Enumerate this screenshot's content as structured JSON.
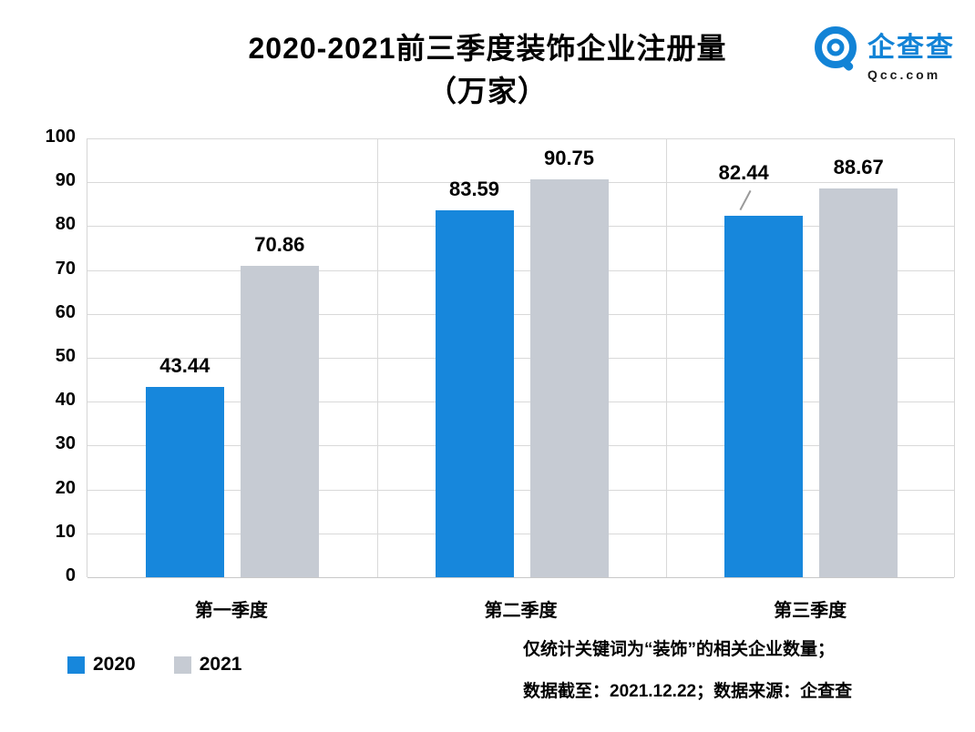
{
  "header": {
    "title_line1": "2020-2021前三季度装饰企业注册量",
    "title_line2": "（万家）",
    "logo": {
      "name": "企查查",
      "domain": "Qcc.com",
      "color": "#1283d6"
    }
  },
  "chart_data": {
    "type": "bar",
    "title": "2020-2021前三季度装饰企业注册量（万家）",
    "categories": [
      "第一季度",
      "第二季度",
      "第三季度"
    ],
    "series": [
      {
        "name": "2020",
        "color": "#1787dc",
        "values": [
          43.44,
          83.59,
          82.44
        ]
      },
      {
        "name": "2021",
        "color": "#c6cbd3",
        "values": [
          70.86,
          90.75,
          88.67
        ]
      }
    ],
    "xlabel": "",
    "ylabel": "",
    "ylim": [
      0,
      100
    ],
    "ytick_step": 10,
    "grid": true,
    "legend_position": "bottom-left",
    "annotations": [
      {
        "type": "leader-line",
        "series_index": 0,
        "category_index": 2
      }
    ]
  },
  "footnotes": {
    "line1": "仅统计关键词为“装饰”的相关企业数量；",
    "line2": "数据截至：2021.12.22；数据来源：企查查"
  }
}
